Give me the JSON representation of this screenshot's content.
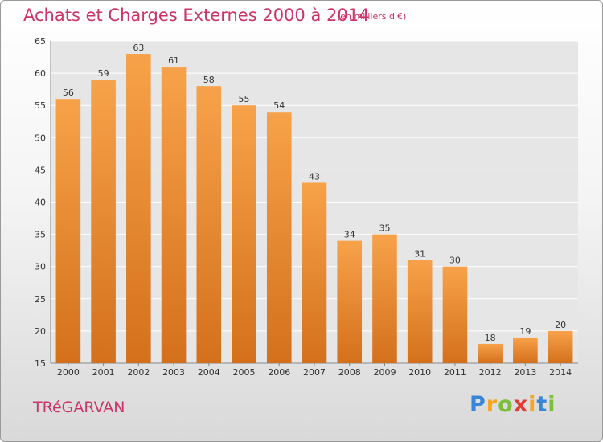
{
  "title": "Achats et Charges Externes 2000 à 2014",
  "unit": "(en milliers d'€)",
  "commune": "TRéGARVAN",
  "logo": {
    "letters": [
      "P",
      "r",
      "o",
      "x",
      "i",
      "t",
      "i"
    ],
    "colors": [
      "#3a86d6",
      "#f5a623",
      "#7bbf3a",
      "#e53935",
      "#f5a623",
      "#3a86d6",
      "#7bbf3a"
    ]
  },
  "colors": {
    "bar_top": "#f7a24a",
    "bar_bottom": "#d4701c",
    "title": "#cc3366",
    "grid": "#ffffff"
  },
  "chart_data": {
    "type": "bar",
    "categories": [
      "2000",
      "2001",
      "2002",
      "2003",
      "2004",
      "2005",
      "2006",
      "2007",
      "2008",
      "2009",
      "2010",
      "2011",
      "2012",
      "2013",
      "2014"
    ],
    "values": [
      56,
      59,
      63,
      61,
      58,
      55,
      54,
      43,
      34,
      35,
      31,
      30,
      18,
      19,
      20
    ],
    "ylim": [
      15,
      65
    ],
    "yticks": [
      15,
      20,
      25,
      30,
      35,
      40,
      45,
      50,
      55,
      60,
      65
    ],
    "grid": true,
    "data_labels": true
  }
}
